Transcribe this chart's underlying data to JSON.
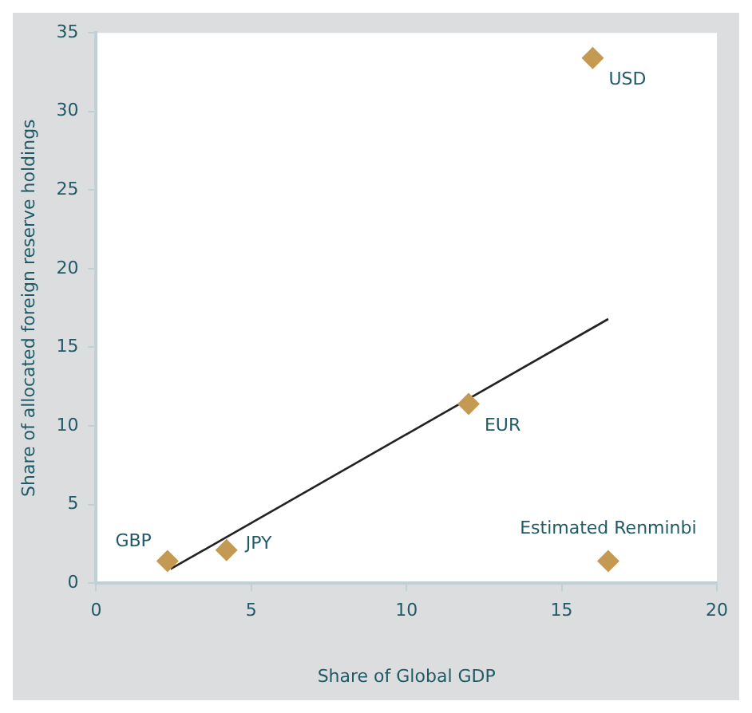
{
  "chart_data": {
    "type": "scatter",
    "xlabel": "Share of Global GDP",
    "ylabel": "Share of allocated foreign reserve holdings",
    "xlim": [
      0,
      20
    ],
    "xticks": [
      0,
      5,
      10,
      15,
      20
    ],
    "ylim": [
      0,
      35
    ],
    "yticks": [
      0,
      5,
      10,
      15,
      20,
      25,
      30,
      35
    ],
    "grid": false,
    "legend": false,
    "marker": "diamond",
    "series": [
      {
        "name": "USD",
        "color": "#c49a52",
        "x": [
          16.0
        ],
        "values": [
          33.4
        ]
      },
      {
        "name": "EUR",
        "color": "#c49a52",
        "x": [
          12.0
        ],
        "values": [
          11.4
        ]
      },
      {
        "name": "GBP",
        "color": "#c49a52",
        "x": [
          2.3
        ],
        "values": [
          1.4
        ]
      },
      {
        "name": "JPY",
        "color": "#c49a52",
        "x": [
          4.2
        ],
        "values": [
          2.1
        ]
      },
      {
        "name": "Estimated Renminbi",
        "color": "#c49a52",
        "x": [
          16.5
        ],
        "values": [
          1.4
        ]
      },
      {
        "type": "line",
        "color": "#222222",
        "x": [
          2.4,
          16.5
        ],
        "values": [
          0.9,
          16.8
        ],
        "marker": "none",
        "line_style": "solid"
      }
    ]
  }
}
